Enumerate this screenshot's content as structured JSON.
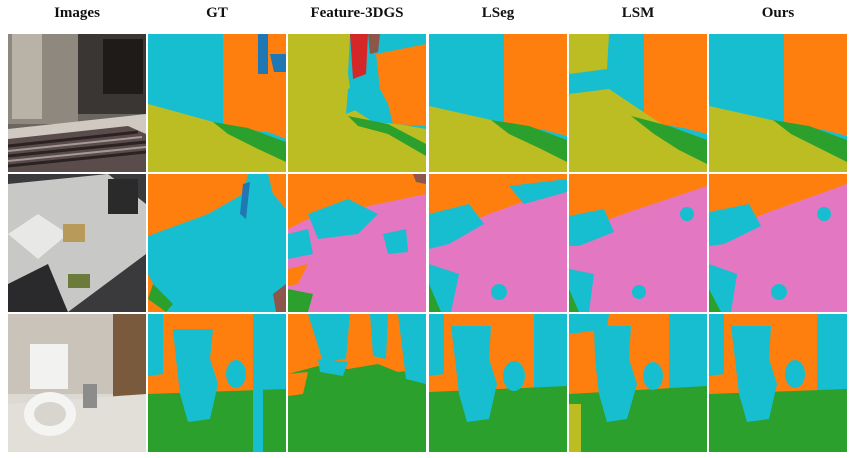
{
  "figure": {
    "columns": [
      "Images",
      "GT",
      "Feature-3DGS",
      "LSeg",
      "LSM",
      "Ours"
    ]
  },
  "colors": {
    "cyan": "#17becf",
    "orange": "#ff7f0e",
    "olive": "#bcbd22",
    "green": "#2ca02c",
    "pink": "#e377c2",
    "blue": "#1f77b4",
    "red": "#d62728",
    "brown": "#8c564b"
  },
  "rows": [
    {
      "scene": "bedroom",
      "photo_icon": "bedroom-photo"
    },
    {
      "scene": "desk",
      "photo_icon": "desk-photo"
    },
    {
      "scene": "bathroom",
      "photo_icon": "bathroom-photo"
    }
  ]
}
